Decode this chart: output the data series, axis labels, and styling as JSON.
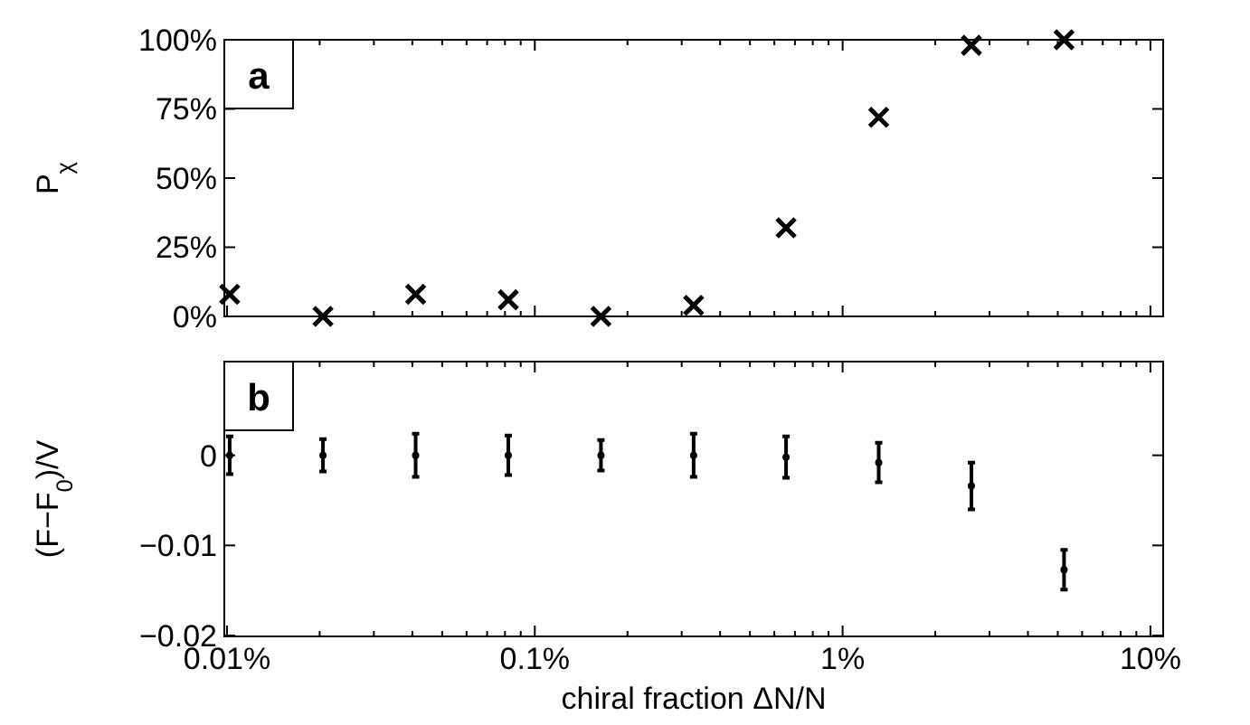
{
  "chart_data": [
    {
      "type": "scatter",
      "ylabel": "P$_{χ}$",
      "annotations": [
        "a"
      ],
      "marker": "cross",
      "log": "x",
      "tick_labels": "y",
      "grid": false,
      "x": [
        0.0102,
        0.0205,
        0.041,
        0.082,
        0.164,
        0.328,
        0.655,
        1.31,
        2.62,
        5.24
      ],
      "values": [
        8,
        0,
        8,
        6,
        0,
        4,
        32,
        72,
        98,
        100
      ],
      "color": "#000000",
      "xlim": [
        0.0098,
        11
      ],
      "xticks": [
        {
          "value": 0.01,
          "label": null
        },
        {
          "value": 0.1,
          "label": null
        },
        {
          "value": 1,
          "label": null
        },
        {
          "value": 10,
          "label": null
        }
      ],
      "ylim": [
        0,
        100
      ],
      "yticks": [
        {
          "value": 0,
          "label": "0%"
        },
        {
          "value": 25,
          "label": "25%"
        },
        {
          "value": 50,
          "label": "50%"
        },
        {
          "value": 75,
          "label": "75%"
        },
        {
          "value": 100,
          "label": "100%"
        }
      ]
    },
    {
      "type": "scatter",
      "ylabel": "(F−F$_{0}$)/V",
      "xlabel": "chiral fraction ΔN/N",
      "annotations": [
        "b"
      ],
      "marker": "circle",
      "log": "x",
      "grid": false,
      "x": [
        0.0102,
        0.0205,
        0.041,
        0.082,
        0.164,
        0.328,
        0.655,
        1.31,
        2.62,
        5.24
      ],
      "values": [
        0,
        0,
        0,
        0,
        0,
        0,
        -0.0002,
        -0.0008,
        -0.0034,
        -0.0127
      ],
      "color": "#000000",
      "errors": [
        0.0021,
        0.0018,
        0.0024,
        0.0022,
        0.0017,
        0.0024,
        0.0023,
        0.0022,
        0.0026,
        0.0022
      ],
      "xlim": [
        0.0098,
        11
      ],
      "xticks": [
        {
          "value": 0.01,
          "label": "0.01%"
        },
        {
          "value": 0.1,
          "label": "0.1%"
        },
        {
          "value": 1,
          "label": "1%"
        },
        {
          "value": 10,
          "label": "10%"
        }
      ],
      "ylim": [
        -0.0201,
        0.0104
      ],
      "yticks": [
        {
          "value": -0.02,
          "label": "−0.02"
        },
        {
          "value": -0.01,
          "label": "−0.01"
        },
        {
          "value": 0,
          "label": "0"
        }
      ]
    }
  ]
}
